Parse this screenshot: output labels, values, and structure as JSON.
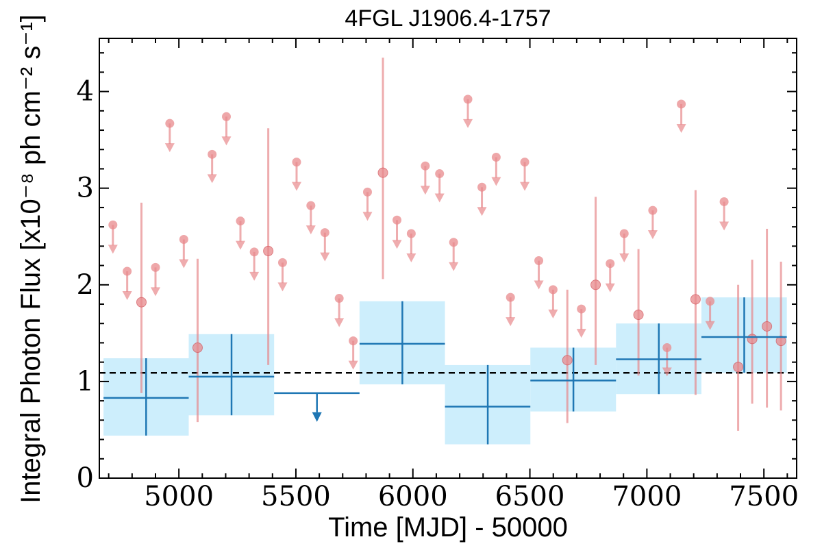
{
  "chart_data": {
    "type": "scatter",
    "title": "4FGL J1906.4-1757",
    "xlabel": "Time [MJD] - 50000",
    "ylabel": "Integral Photon Flux [x10⁻⁸ ph cm⁻² s⁻¹]",
    "xlim": [
      4660,
      7640
    ],
    "ylim": [
      0,
      4.55
    ],
    "xticks": [
      5000,
      5500,
      6000,
      6500,
      7000,
      7500
    ],
    "yticks": [
      0,
      1,
      2,
      3,
      4
    ],
    "grid": false,
    "reference_line": {
      "y": 1.09,
      "style": "dashed",
      "color": "#000000"
    },
    "colors": {
      "long_bins": "#1f77b4",
      "long_band": "#cdeefc",
      "short_bins": "#e8898c"
    },
    "series": [
      {
        "bin_width": 365,
        "detections": [
          {
            "x": 4860,
            "y": 0.83,
            "ylo": 0.44,
            "yhi": 1.24,
            "x0": 4678,
            "x1": 5042
          },
          {
            "x": 5225,
            "y": 1.05,
            "ylo": 0.65,
            "yhi": 1.49,
            "x0": 5042,
            "x1": 5407
          },
          {
            "x": 5955,
            "y": 1.39,
            "ylo": 0.97,
            "yhi": 1.83,
            "x0": 5772,
            "x1": 6137
          },
          {
            "x": 6320,
            "y": 0.74,
            "ylo": 0.35,
            "yhi": 1.17,
            "x0": 6137,
            "x1": 6502
          },
          {
            "x": 6686,
            "y": 1.01,
            "ylo": 0.69,
            "yhi": 1.35,
            "x0": 6502,
            "x1": 6868
          },
          {
            "x": 7051,
            "y": 1.23,
            "ylo": 0.87,
            "yhi": 1.6,
            "x0": 6868,
            "x1": 7233
          },
          {
            "x": 7416,
            "y": 1.46,
            "ylo": 1.09,
            "yhi": 1.87,
            "x0": 7233,
            "x1": 7598
          }
        ],
        "upper_limits": [
          {
            "x": 5590,
            "y": 0.88,
            "x0": 5407,
            "x1": 5772
          }
        ]
      },
      {
        "bin_width": 60,
        "detections": [
          {
            "x": 4840,
            "y": 1.82,
            "ylo": 0.88,
            "yhi": 2.85
          },
          {
            "x": 5080,
            "y": 1.35,
            "ylo": 0.58,
            "yhi": 2.27
          },
          {
            "x": 5382,
            "y": 2.35,
            "ylo": 1.17,
            "yhi": 3.62
          },
          {
            "x": 5872,
            "y": 3.16,
            "ylo": 2.06,
            "yhi": 4.35
          },
          {
            "x": 6660,
            "y": 1.22,
            "ylo": 0.57,
            "yhi": 1.95
          },
          {
            "x": 6781,
            "y": 2.0,
            "ylo": 1.17,
            "yhi": 2.91
          },
          {
            "x": 6964,
            "y": 1.69,
            "ylo": 1.06,
            "yhi": 2.37
          },
          {
            "x": 7208,
            "y": 1.85,
            "ylo": 0.86,
            "yhi": 2.98
          },
          {
            "x": 7390,
            "y": 1.15,
            "ylo": 0.49,
            "yhi": 2.0
          },
          {
            "x": 7450,
            "y": 1.44,
            "ylo": 0.77,
            "yhi": 2.26
          },
          {
            "x": 7513,
            "y": 1.57,
            "ylo": 0.73,
            "yhi": 2.58
          },
          {
            "x": 7573,
            "y": 1.42,
            "ylo": 0.7,
            "yhi": 2.24
          }
        ],
        "upper_limits": [
          {
            "x": 4718,
            "y": 2.62
          },
          {
            "x": 4779,
            "y": 2.14
          },
          {
            "x": 4900,
            "y": 2.18
          },
          {
            "x": 4961,
            "y": 3.67
          },
          {
            "x": 5021,
            "y": 2.47
          },
          {
            "x": 5142,
            "y": 3.35
          },
          {
            "x": 5203,
            "y": 3.74
          },
          {
            "x": 5263,
            "y": 2.66
          },
          {
            "x": 5322,
            "y": 2.34
          },
          {
            "x": 5443,
            "y": 2.23
          },
          {
            "x": 5503,
            "y": 3.27
          },
          {
            "x": 5564,
            "y": 2.82
          },
          {
            "x": 5624,
            "y": 2.54
          },
          {
            "x": 5685,
            "y": 1.86
          },
          {
            "x": 5745,
            "y": 1.42
          },
          {
            "x": 5806,
            "y": 2.96
          },
          {
            "x": 5932,
            "y": 2.67
          },
          {
            "x": 5993,
            "y": 2.53
          },
          {
            "x": 6053,
            "y": 3.23
          },
          {
            "x": 6114,
            "y": 3.15
          },
          {
            "x": 6174,
            "y": 2.44
          },
          {
            "x": 6235,
            "y": 3.92
          },
          {
            "x": 6295,
            "y": 3.01
          },
          {
            "x": 6356,
            "y": 3.32
          },
          {
            "x": 6417,
            "y": 1.87
          },
          {
            "x": 6478,
            "y": 3.27
          },
          {
            "x": 6538,
            "y": 2.25
          },
          {
            "x": 6599,
            "y": 1.95
          },
          {
            "x": 6720,
            "y": 1.75
          },
          {
            "x": 6843,
            "y": 2.22
          },
          {
            "x": 6903,
            "y": 2.53
          },
          {
            "x": 7025,
            "y": 2.77
          },
          {
            "x": 7086,
            "y": 1.35
          },
          {
            "x": 7147,
            "y": 3.87
          },
          {
            "x": 7270,
            "y": 1.83
          },
          {
            "x": 7330,
            "y": 2.86
          }
        ]
      }
    ]
  }
}
